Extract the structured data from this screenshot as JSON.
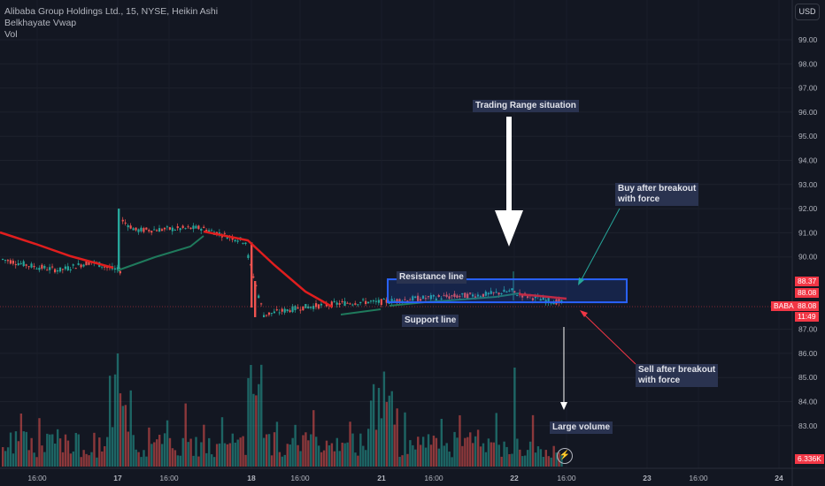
{
  "legend": {
    "symbol_line": "Alibaba Group Holdings Ltd., 15, NYSE, Heikin Ashi",
    "indicator": "Belkhayate Vwap",
    "volume": "Vol"
  },
  "currency": "USD",
  "annotations": {
    "trading_range": "Trading Range situation",
    "resistance": "Resistance line",
    "support": "Support line",
    "buy_line1": "Buy after breakout",
    "buy_line2": "with force",
    "sell_line1": "Sell after breakout",
    "sell_line2": "with force",
    "large_volume": "Large volume"
  },
  "price_tags": {
    "high": "88.37",
    "last": "88.08",
    "symbol": "BABA",
    "symbol_price": "88.08",
    "countdown": "11:49",
    "volume": "6.336K"
  },
  "colors": {
    "up": "#26a69a",
    "down": "#ef5350",
    "vwap_down": "#e01e1e",
    "vwap_up": "#1f7a5c",
    "range_box": "#2962ff",
    "buy_arrow": "#26a69a",
    "sell_arrow": "#f23645"
  },
  "chart_data": {
    "type": "candlestick",
    "price_axis": {
      "ticks": [
        "99.00",
        "98.00",
        "97.00",
        "96.00",
        "95.00",
        "94.00",
        "93.00",
        "92.00",
        "91.00",
        "90.00",
        "87.00",
        "86.00",
        "85.00",
        "84.00",
        "83.00"
      ]
    },
    "time_axis": {
      "ticks": [
        "16:00",
        "17",
        "16:00",
        "18",
        "16:00",
        "21",
        "16:00",
        "22",
        "16:00",
        "23",
        "16:00",
        "24"
      ]
    },
    "range_box": {
      "low": 88.0,
      "high": 88.85,
      "from_index": 149,
      "to_index": 222
    }
  }
}
